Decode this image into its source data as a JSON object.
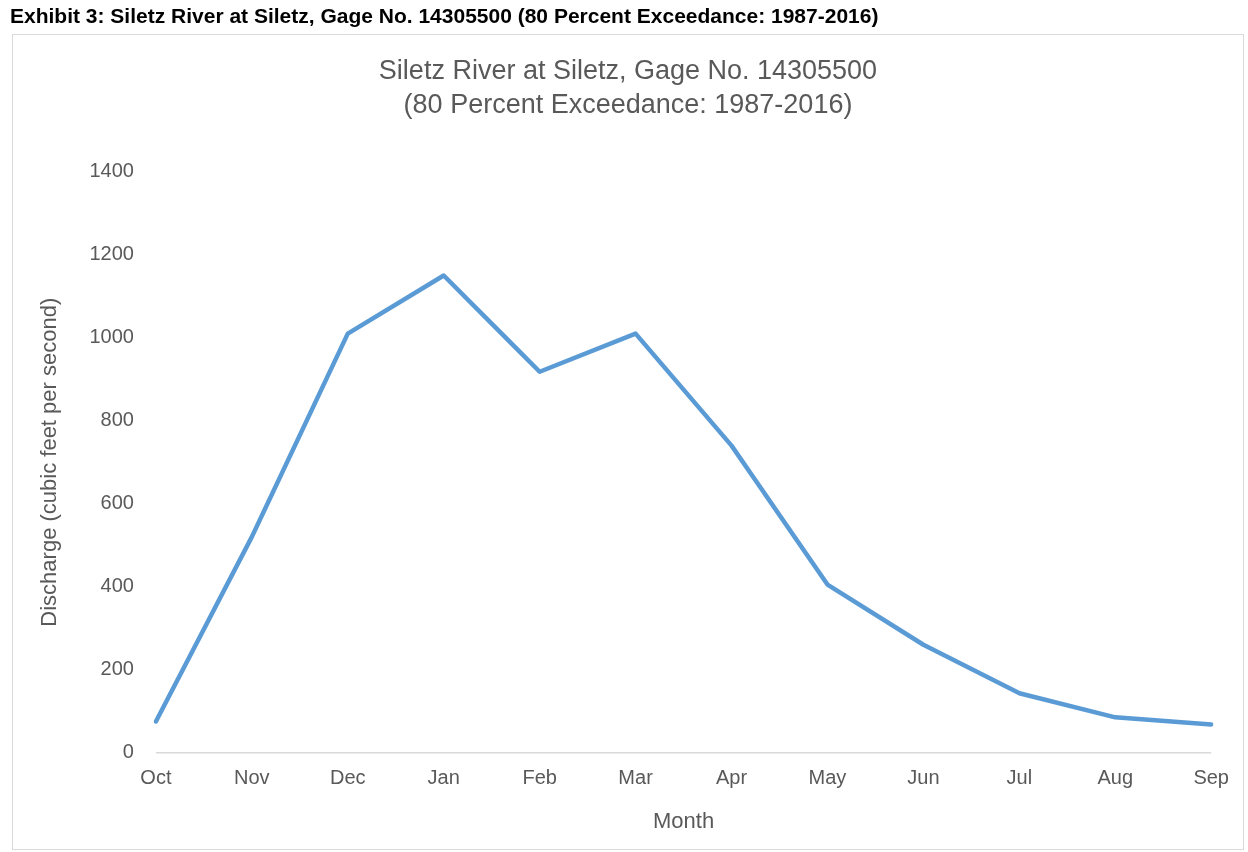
{
  "chart_data": {
    "type": "line",
    "title": "Siletz River at Siletz, Gage No. 14305500",
    "subtitle": "(80 Percent Exceedance: 1987-2016)",
    "annotations": [
      "Exhibit 3: Siletz River at Siletz, Gage No. 14305500 (80 Percent Exceedance: 1987-2016)"
    ],
    "xlabel": "Month",
    "ylabel": "Discharge (cubic feet per second)",
    "categories": [
      "Oct",
      "Nov",
      "Dec",
      "Jan",
      "Feb",
      "Mar",
      "Apr",
      "May",
      "Jun",
      "Jul",
      "Aug",
      "Sep"
    ],
    "series": [
      {
        "color": "#5b9bd5",
        "values": [
          75,
          520,
          1010,
          1150,
          918,
          1010,
          740,
          405,
          260,
          143,
          85,
          68
        ]
      }
    ],
    "ylim": [
      0,
      1400
    ],
    "yticks": [
      0,
      200,
      400,
      600,
      800,
      1000,
      1200,
      1400
    ],
    "grid": false,
    "legend": false,
    "marker": "none",
    "line_style": "solid"
  }
}
